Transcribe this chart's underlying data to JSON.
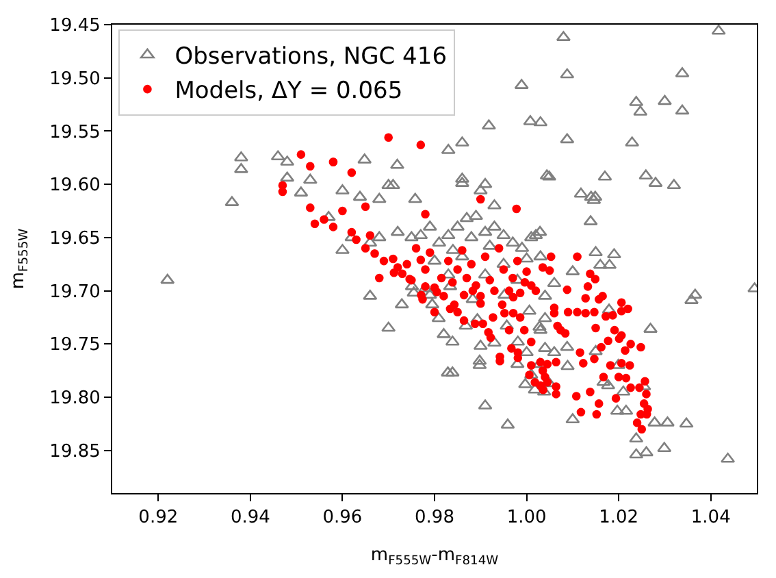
{
  "chart_data": {
    "type": "scatter",
    "xlabel": "m$_{F555W}$-m$_{F814W}$",
    "ylabel": "m$_{F555W}$",
    "xlim": [
      0.91,
      1.05
    ],
    "ylim": [
      19.89,
      19.45
    ],
    "xticks": [
      {
        "value": 0.92,
        "label": "0.92"
      },
      {
        "value": 0.94,
        "label": "0.94"
      },
      {
        "value": 0.96,
        "label": "0.96"
      },
      {
        "value": 0.98,
        "label": "0.98"
      },
      {
        "value": 1.0,
        "label": "1.00"
      },
      {
        "value": 1.02,
        "label": "1.02"
      },
      {
        "value": 1.04,
        "label": "1.04"
      }
    ],
    "yticks": [
      {
        "value": 19.45,
        "label": "19.45"
      },
      {
        "value": 19.5,
        "label": "19.50"
      },
      {
        "value": 19.55,
        "label": "19.55"
      },
      {
        "value": 19.6,
        "label": "19.60"
      },
      {
        "value": 19.65,
        "label": "19.65"
      },
      {
        "value": 19.7,
        "label": "19.70"
      },
      {
        "value": 19.75,
        "label": "19.75"
      },
      {
        "value": 19.8,
        "label": "19.80"
      },
      {
        "value": 19.85,
        "label": "19.85"
      }
    ],
    "legend": "top left",
    "series": [
      {
        "name": "Observations, NGC 416",
        "color": "#808080",
        "marker": "triangle",
        "x": [
          0.922,
          0.936,
          0.938,
          0.938,
          0.946,
          0.948,
          0.948,
          0.951,
          0.953,
          0.957,
          0.9989,
          1.0008,
          1.003,
          0.9918,
          0.986,
          0.983,
          0.9648,
          0.9719,
          0.97,
          0.971,
          0.986,
          0.986,
          0.991,
          0.99,
          0.96,
          0.9638,
          0.968,
          0.9758,
          0.993,
          1.0044,
          1.008,
          1.0417,
          1.0088,
          1.0338,
          1.0238,
          1.0247,
          1.03,
          1.0338,
          1.0088,
          1.0229,
          1.0049,
          1.017,
          1.0259,
          1.028,
          1.032,
          1.0118,
          1.014,
          1.0149,
          1.0146,
          1.0139,
          1.0029,
          1.015,
          1.019,
          1.016,
          1.018,
          1.01,
          1.0495,
          1.0366,
          1.0358,
          1.0269,
          1.0179,
          1.015,
          1.0167,
          1.0177,
          1.0197,
          1.0216,
          1.01,
          1.0278,
          1.0306,
          1.0347,
          1.0238,
          1.0238,
          1.026,
          1.0299,
          1.0437,
          1.006,
          1.0088,
          1.006,
          1.004,
          1.0028,
          1.0038,
          1.0199,
          1.0089,
          1.0049,
          1.0255,
          1.021,
          0.966,
          0.9729,
          0.97,
          0.9809,
          0.982,
          0.9839,
          0.9829,
          0.9839,
          0.9898,
          0.9898,
          0.991,
          0.9959,
          0.99,
          0.993,
          0.9893,
          0.9868,
          0.9957,
          0.9981,
          1.0,
          0.998,
          0.9997,
          1.0018,
          1.0028,
          1.001,
          1.004,
          1.003,
          1.0006,
          0.9952,
          0.9883,
          0.9834,
          0.979,
          0.9795,
          0.9751,
          0.9755,
          0.972,
          0.975,
          0.977,
          0.979,
          0.981,
          0.983,
          0.985,
          0.987,
          0.989,
          0.991,
          0.993,
          0.995,
          0.997,
          0.999,
          1.001,
          1.002,
          0.984,
          0.986,
          0.98,
          0.992,
          0.988,
          0.968,
          0.962,
          0.96,
          0.966,
          1.0,
          1.003,
          0.995,
          0.983,
          0.978,
          0.991,
          0.998,
          1.004
        ],
        "values": [
          19.69,
          19.617,
          19.575,
          19.586,
          19.574,
          19.579,
          19.594,
          19.608,
          19.596,
          19.631,
          19.507,
          19.541,
          19.542,
          19.545,
          19.561,
          19.568,
          19.577,
          19.582,
          19.601,
          19.601,
          19.595,
          19.599,
          19.6,
          19.606,
          19.606,
          19.612,
          19.614,
          19.614,
          19.62,
          19.592,
          19.462,
          19.456,
          19.497,
          19.496,
          19.523,
          19.532,
          19.522,
          19.531,
          19.558,
          19.561,
          19.593,
          19.593,
          19.592,
          19.599,
          19.601,
          19.609,
          19.612,
          19.612,
          19.615,
          19.635,
          19.645,
          19.664,
          19.666,
          19.676,
          19.676,
          19.682,
          19.698,
          19.704,
          19.709,
          19.736,
          19.718,
          19.757,
          19.786,
          19.789,
          19.813,
          19.813,
          19.821,
          19.824,
          19.824,
          19.825,
          19.839,
          19.854,
          19.852,
          19.848,
          19.858,
          19.693,
          19.753,
          19.758,
          19.726,
          19.734,
          19.795,
          19.77,
          19.771,
          19.787,
          19.79,
          19.795,
          19.705,
          19.713,
          19.735,
          19.726,
          19.741,
          19.748,
          19.777,
          19.777,
          19.766,
          19.77,
          19.808,
          19.826,
          19.752,
          19.749,
          19.727,
          19.733,
          19.733,
          19.748,
          19.758,
          19.769,
          19.788,
          19.793,
          19.769,
          19.779,
          19.754,
          19.737,
          19.719,
          19.704,
          19.708,
          19.696,
          19.704,
          19.713,
          19.696,
          19.702,
          19.645,
          19.65,
          19.648,
          19.64,
          19.655,
          19.648,
          19.64,
          19.632,
          19.63,
          19.645,
          19.64,
          19.648,
          19.655,
          19.66,
          19.65,
          19.648,
          19.662,
          19.668,
          19.672,
          19.658,
          19.65,
          19.65,
          19.65,
          19.662,
          19.655,
          19.67,
          19.668,
          19.675,
          19.685,
          19.698,
          19.685,
          19.69,
          19.705
        ]
      },
      {
        "name": "Models, ΔY = 0.065",
        "color": "#ff0000",
        "marker": "circle",
        "x": [
          0.951,
          0.953,
          0.958,
          0.947,
          0.947,
          0.953,
          0.954,
          0.956,
          0.958,
          0.97,
          0.977,
          0.958,
          0.962,
          0.99,
          0.9978,
          0.965,
          0.96,
          0.978,
          1.0053,
          1.011,
          1.0035,
          1.005,
          1.0138,
          1.0149,
          1.0088,
          1.0133,
          1.0128,
          1.0157,
          1.0165,
          1.0206,
          1.0206,
          1.022,
          1.006,
          1.006,
          1.009,
          1.011,
          1.0128,
          1.0147,
          1.0172,
          1.0187,
          1.015,
          1.0067,
          1.0074,
          1.0084,
          1.0191,
          1.0206,
          1.0201,
          1.0177,
          1.0162,
          1.0226,
          1.0248,
          1.0214,
          1.0116,
          1.0147,
          1.0123,
          1.0206,
          1.0182,
          1.0224,
          1.0167,
          1.02,
          1.0216,
          1.0257,
          1.0245,
          1.0226,
          1.026,
          1.0194,
          1.0138,
          1.0157,
          1.0108,
          1.0118,
          1.0152,
          1.0255,
          1.0263,
          1.0248,
          1.0261,
          1.024,
          1.025,
          1.003,
          1.004,
          1.0064,
          1.0064,
          1.0045,
          1.0036,
          1.0045,
          1.0064,
          0.9712,
          0.9746,
          0.978,
          0.9771,
          0.9774,
          0.9805,
          0.9815,
          0.9839,
          0.9834,
          0.9843,
          0.9864,
          0.9883,
          0.9864,
          0.9888,
          0.9905,
          0.9927,
          0.9947,
          0.9952,
          0.9971,
          0.9962,
          0.9986,
          0.9996,
          0.9971,
          0.9986,
          0.9917,
          0.9922,
          0.9942,
          0.9942,
          0.9967,
          0.9981,
          0.9981,
          1.0006,
          1.0018,
          1.003,
          1.0035,
          1.001,
          0.9962,
          0.9995,
          1.001,
          0.971,
          0.972,
          0.974,
          0.973,
          0.975,
          0.976,
          0.977,
          0.978,
          0.969,
          0.967,
          0.965,
          0.963,
          0.966,
          0.962,
          0.968,
          0.98,
          0.982,
          0.985,
          0.987,
          0.988,
          0.989,
          0.99,
          0.992,
          0.993,
          0.995,
          0.997,
          0.998,
          1.0,
          1.001,
          1.002,
          0.979,
          0.983,
          0.986,
          0.991,
          0.994,
          0.99,
          0.985,
          0.98
        ],
        "values": [
          19.572,
          19.583,
          19.579,
          19.601,
          19.607,
          19.622,
          19.637,
          19.633,
          19.64,
          19.556,
          19.563,
          19.579,
          19.589,
          19.614,
          19.623,
          19.621,
          19.625,
          19.628,
          19.668,
          19.668,
          19.678,
          19.681,
          19.684,
          19.689,
          19.699,
          19.696,
          19.707,
          19.708,
          19.705,
          19.711,
          19.719,
          19.717,
          19.716,
          19.721,
          19.72,
          19.72,
          19.721,
          19.72,
          19.724,
          19.723,
          19.735,
          19.733,
          19.737,
          19.74,
          19.737,
          19.742,
          19.745,
          19.747,
          19.753,
          19.75,
          19.753,
          19.756,
          19.758,
          19.764,
          19.768,
          19.768,
          19.77,
          19.77,
          19.781,
          19.781,
          19.782,
          19.785,
          19.791,
          19.791,
          19.797,
          19.801,
          19.795,
          19.806,
          19.799,
          19.814,
          19.816,
          19.806,
          19.811,
          19.816,
          19.816,
          19.824,
          19.83,
          19.767,
          19.781,
          19.79,
          19.797,
          19.786,
          19.793,
          19.769,
          19.767,
          19.683,
          19.689,
          19.696,
          19.704,
          19.708,
          19.701,
          19.688,
          19.692,
          19.717,
          19.713,
          19.704,
          19.7,
          19.728,
          19.731,
          19.731,
          19.725,
          19.713,
          19.721,
          19.706,
          19.7,
          19.702,
          19.692,
          19.721,
          19.725,
          19.739,
          19.744,
          19.762,
          19.766,
          19.754,
          19.758,
          19.763,
          19.779,
          19.786,
          19.789,
          19.775,
          19.77,
          19.737,
          19.737,
          19.748,
          19.67,
          19.678,
          19.675,
          19.684,
          19.69,
          19.66,
          19.671,
          19.68,
          19.672,
          19.665,
          19.66,
          19.652,
          19.648,
          19.645,
          19.688,
          19.697,
          19.705,
          19.68,
          19.688,
          19.675,
          19.695,
          19.705,
          19.69,
          19.7,
          19.68,
          19.688,
          19.672,
          19.682,
          19.695,
          19.7,
          19.664,
          19.672,
          19.662,
          19.668,
          19.66,
          19.712,
          19.72,
          19.72
        ]
      }
    ]
  }
}
